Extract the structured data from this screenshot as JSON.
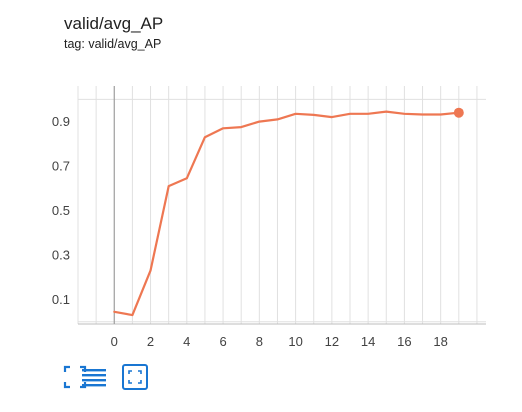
{
  "header": {
    "title": "valid/avg_AP",
    "tag_line": "tag: valid/avg_AP"
  },
  "colors": {
    "series": "#ee7752",
    "grid": "#e0e0e0",
    "zero_axis": "#9e9e9e",
    "tick_text": "#424242",
    "toolbar": "#1976d2"
  },
  "toolbar": {
    "buttons": [
      {
        "icon": "fullscreen-icon"
      },
      {
        "icon": "toggle-y-log-icon"
      },
      {
        "icon": "fit-domain-icon"
      }
    ]
  },
  "chart_data": {
    "type": "line",
    "x": [
      0,
      1,
      2,
      3,
      4,
      5,
      6,
      7,
      8,
      9,
      10,
      11,
      12,
      13,
      14,
      15,
      16,
      17,
      18,
      19
    ],
    "series": [
      {
        "values": [
          0.045,
          0.03,
          0.23,
          0.61,
          0.645,
          0.83,
          0.87,
          0.875,
          0.9,
          0.91,
          0.935,
          0.93,
          0.92,
          0.935,
          0.935,
          0.945,
          0.935,
          0.932,
          0.932,
          0.94
        ],
        "last_point_marker": true
      }
    ],
    "xlim": [
      -2,
      20.5
    ],
    "ylim": [
      -0.01,
      1.06
    ],
    "xticks": [
      0,
      2,
      4,
      6,
      8,
      10,
      12,
      14,
      16,
      18
    ],
    "yticks": [
      0.1,
      0.3,
      0.5,
      0.7,
      0.9
    ],
    "ytick_labels": [
      "0.1",
      "0.3",
      "0.5",
      "0.7",
      "0.9"
    ],
    "grid": true,
    "title": "valid/avg_AP",
    "xlabel": "",
    "ylabel": ""
  }
}
